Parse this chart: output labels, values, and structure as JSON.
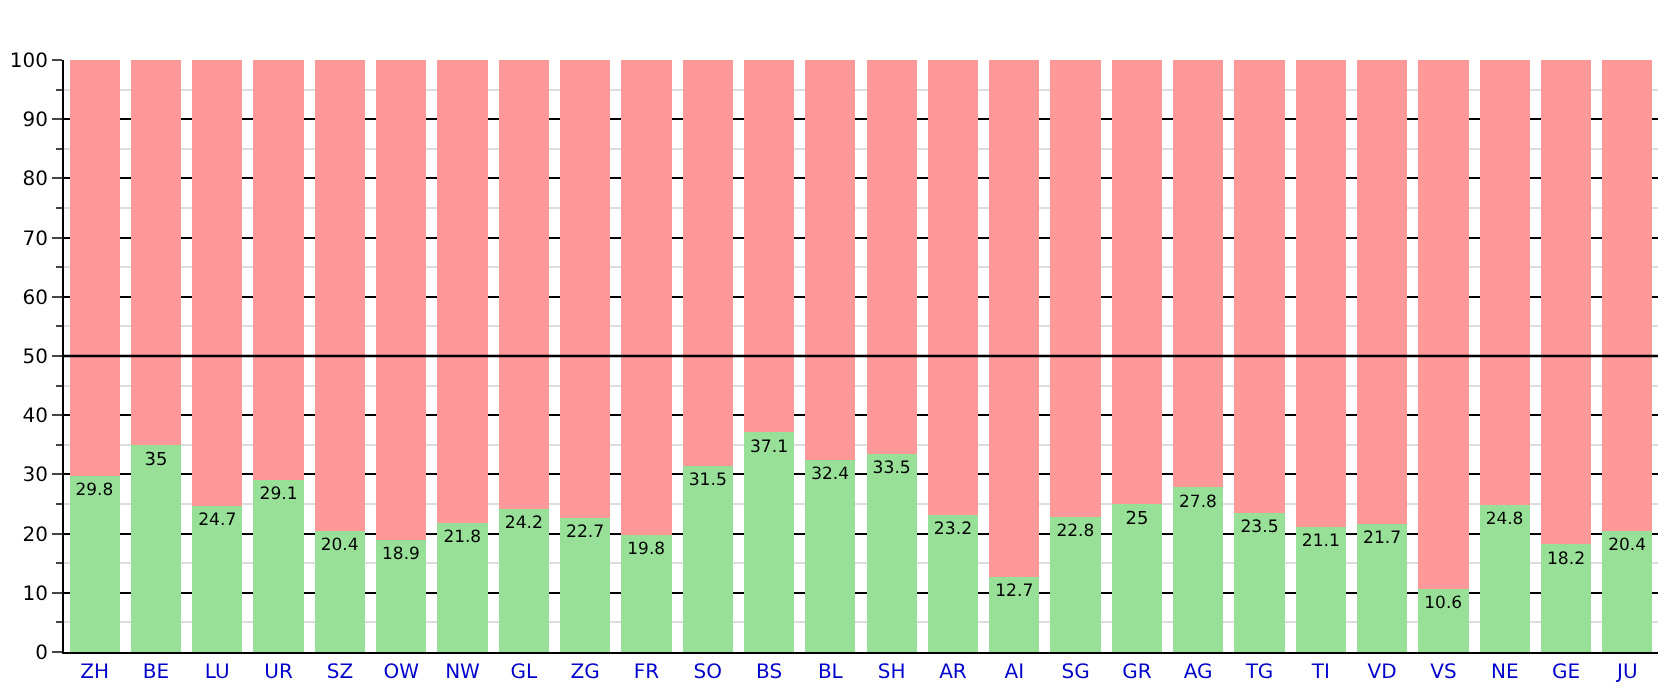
{
  "chart_data": {
    "type": "bar",
    "stacked": true,
    "categories": [
      "ZH",
      "BE",
      "LU",
      "UR",
      "SZ",
      "OW",
      "NW",
      "GL",
      "ZG",
      "FR",
      "SO",
      "BS",
      "BL",
      "SH",
      "AR",
      "AI",
      "SG",
      "GR",
      "AG",
      "TG",
      "TI",
      "VD",
      "VS",
      "NE",
      "GE",
      "JU"
    ],
    "series": [
      {
        "color": "#98e098",
        "values": [
          29.8,
          35,
          24.7,
          29.1,
          20.4,
          18.9,
          21.8,
          24.2,
          22.7,
          19.8,
          31.5,
          37.1,
          32.4,
          33.5,
          23.2,
          12.7,
          22.8,
          25,
          27.8,
          23.5,
          21.1,
          21.7,
          10.6,
          24.8,
          18.2,
          20.4
        ],
        "value_labels": [
          "29.8",
          "35",
          "24.7",
          "29.1",
          "20.4",
          "18.9",
          "21.8",
          "24.2",
          "22.7",
          "19.8",
          "31.5",
          "37.1",
          "32.4",
          "33.5",
          "23.2",
          "12.7",
          "22.8",
          "25",
          "27.8",
          "23.5",
          "21.1",
          "21.7",
          "10.6",
          "24.8",
          "18.2",
          "20.4"
        ]
      },
      {
        "color": "#ff9999",
        "values": [
          70.2,
          65,
          75.3,
          70.9,
          79.6,
          81.1,
          78.2,
          75.8,
          77.3,
          80.2,
          68.5,
          62.9,
          67.6,
          66.5,
          76.8,
          87.3,
          77.2,
          75,
          72.2,
          76.5,
          78.9,
          78.3,
          89.4,
          75.2,
          81.8,
          79.6
        ]
      }
    ],
    "ylim": [
      0,
      100
    ],
    "yticks": [
      0,
      10,
      20,
      30,
      40,
      50,
      60,
      70,
      80,
      90,
      100
    ],
    "grid": "y",
    "ref_lines": [
      {
        "axis": "y",
        "value": 50,
        "color": "#000000"
      }
    ]
  }
}
